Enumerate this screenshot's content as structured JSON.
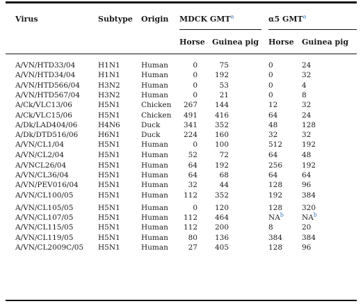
{
  "header": {
    "virus": "Virus",
    "subtype": "Subtype",
    "origin": "Origin",
    "mdck": "MDCK GMT",
    "mdck_sup": "a",
    "a5": "α5 GMT",
    "a5_sup": "a",
    "horse": "Horse",
    "guinea_pig": "Guinea pig"
  },
  "rows": [
    {
      "virus": "A/VN/HTD33/04",
      "subtype": "H1N1",
      "origin": "Human",
      "mdck_horse": "0",
      "mdck_gp": "75",
      "a5_horse": "0",
      "a5_gp": "24"
    },
    {
      "virus": "A/VN/HTD34/04",
      "subtype": "H1N1",
      "origin": "Human",
      "mdck_horse": "0",
      "mdck_gp": "192",
      "a5_horse": "0",
      "a5_gp": "32"
    },
    {
      "virus": "A/VN/HTD566/04",
      "subtype": "H3N2",
      "origin": "Human",
      "mdck_horse": "0",
      "mdck_gp": "53",
      "a5_horse": "0",
      "a5_gp": "4"
    },
    {
      "virus": "A/VN/HTD567/04",
      "subtype": "H3N2",
      "origin": "Human",
      "mdck_horse": "0",
      "mdck_gp": "21",
      "a5_horse": "0",
      "a5_gp": "8"
    },
    {
      "virus": "A/Ck/VLC13/06",
      "subtype": "H5N1",
      "origin": "Chicken",
      "mdck_horse": "267",
      "mdck_gp": "144",
      "a5_horse": "12",
      "a5_gp": "32"
    },
    {
      "virus": "A/Ck/VLC15/06",
      "subtype": "H5N1",
      "origin": "Chicken",
      "mdck_horse": "491",
      "mdck_gp": "416",
      "a5_horse": "64",
      "a5_gp": "24"
    },
    {
      "virus": "A/Dk/LAD404/06",
      "subtype": "H4N6",
      "origin": "Duck",
      "mdck_horse": "341",
      "mdck_gp": "352",
      "a5_horse": "48",
      "a5_gp": "128"
    },
    {
      "virus": "A/Dk/DTD516/06",
      "subtype": "H6N1",
      "origin": "Duck",
      "mdck_horse": "224",
      "mdck_gp": "160",
      "a5_horse": "32",
      "a5_gp": "32"
    },
    {
      "virus": "A/VN/CL1/04",
      "subtype": "H5N1",
      "origin": "Human",
      "mdck_horse": "0",
      "mdck_gp": "100",
      "a5_horse": "512",
      "a5_gp": "192"
    },
    {
      "virus": "A/VN/CL2/04",
      "subtype": "H5N1",
      "origin": "Human",
      "mdck_horse": "52",
      "mdck_gp": "72",
      "a5_horse": "64",
      "a5_gp": "48"
    },
    {
      "virus": "A/VNCL26/04",
      "subtype": "H5N1",
      "origin": "Human",
      "mdck_horse": "64",
      "mdck_gp": "192",
      "a5_horse": "256",
      "a5_gp": "192"
    },
    {
      "virus": "A/VN/CL36/04",
      "subtype": "H5N1",
      "origin": "Human",
      "mdck_horse": "64",
      "mdck_gp": "68",
      "a5_horse": "64",
      "a5_gp": "64"
    },
    {
      "virus": "A/VN/PEV016/04",
      "subtype": "H5N1",
      "origin": "Human",
      "mdck_horse": "32",
      "mdck_gp": "44",
      "a5_horse": "128",
      "a5_gp": "96"
    },
    {
      "virus": "A/VN/CL100/05",
      "subtype": "H5N1",
      "origin": "Human",
      "mdck_horse": "112",
      "mdck_gp": "352",
      "a5_horse": "192",
      "a5_gp": "384"
    },
    {
      "virus": "A/VN/CL105/05",
      "subtype": "H5N1",
      "origin": "Human",
      "mdck_horse": "0",
      "mdck_gp": "120",
      "a5_horse": "128",
      "a5_gp": "320"
    },
    {
      "virus": "A/VN/CL107/05",
      "subtype": "H5N1",
      "origin": "Human",
      "mdck_horse": "112",
      "mdck_gp": "464",
      "a5_horse": "NA",
      "a5_horse_sup": "b",
      "a5_gp": "NA",
      "a5_gp_sup": "b"
    },
    {
      "virus": "A/VN/CL115/05",
      "subtype": "H5N1",
      "origin": "Human",
      "mdck_horse": "112",
      "mdck_gp": "200",
      "a5_horse": "8",
      "a5_gp": "20"
    },
    {
      "virus": "A/VN/CL119/05",
      "subtype": "H5N1",
      "origin": "Human",
      "mdck_horse": "80",
      "mdck_gp": "136",
      "a5_horse": "384",
      "a5_gp": "384"
    },
    {
      "virus": "A/VN/CL2009C/05",
      "subtype": "H5N1",
      "origin": "Human",
      "mdck_horse": "27",
      "mdck_gp": "405",
      "a5_horse": "128",
      "a5_gp": "96"
    }
  ]
}
